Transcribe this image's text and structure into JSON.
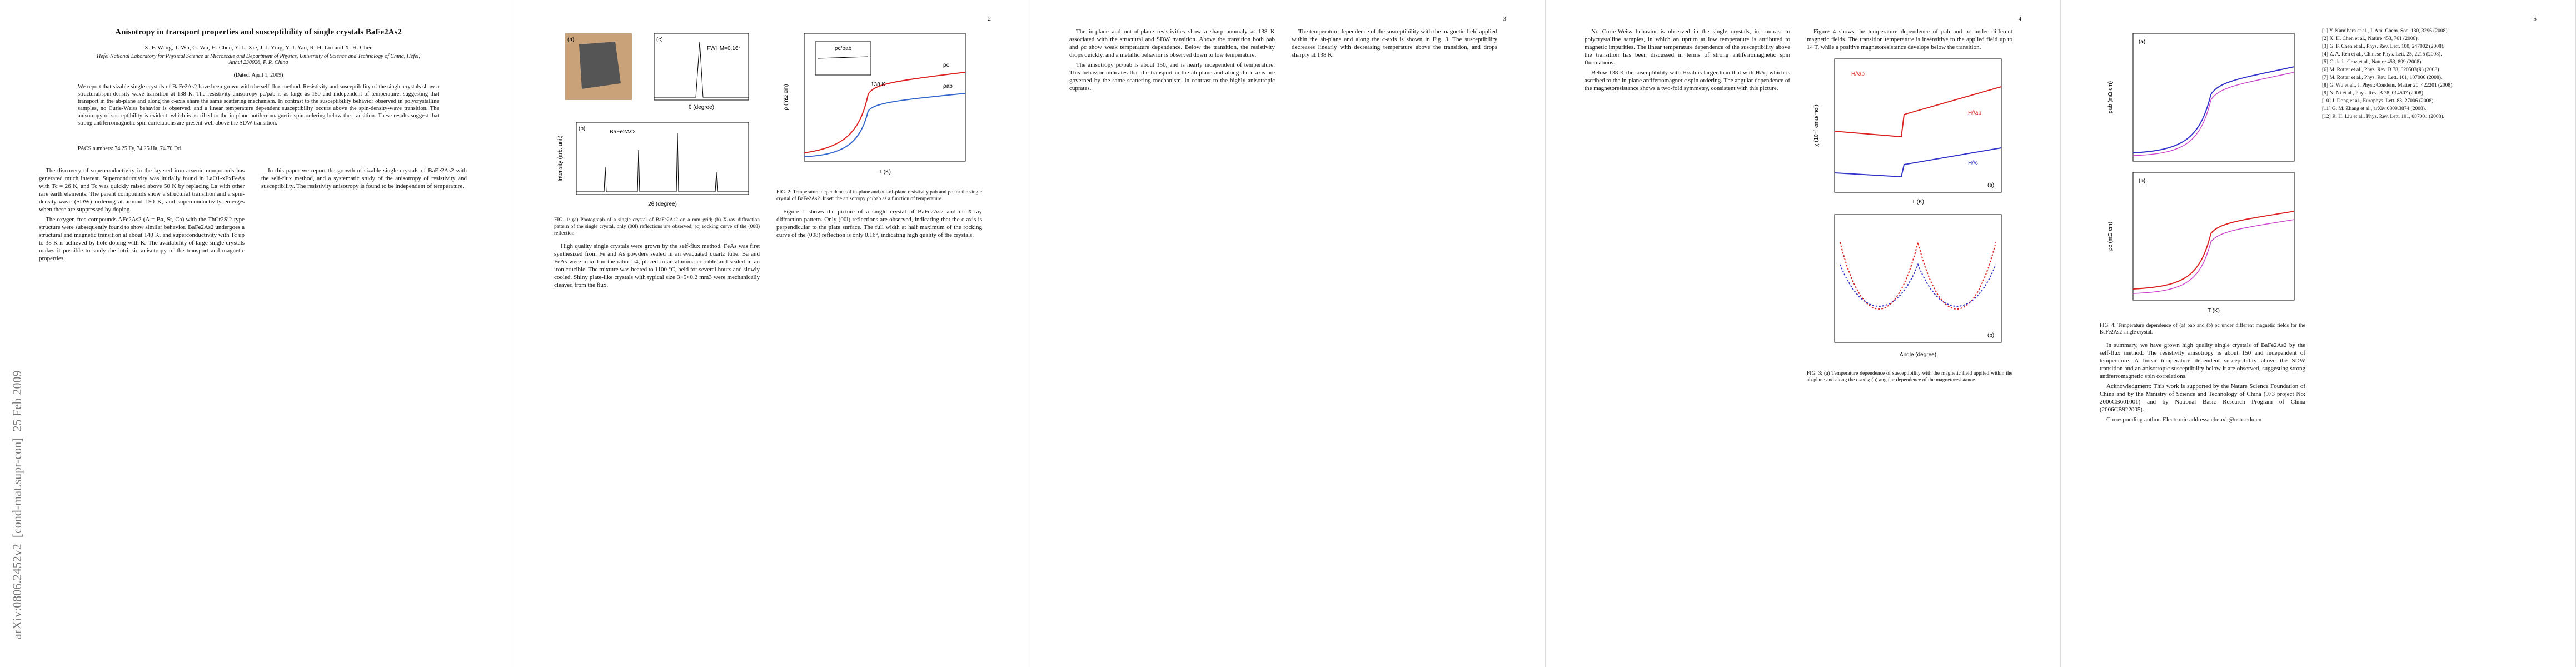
{
  "stamp": "arXiv:0806.2452v2  [cond-mat.supr-con]  25 Feb 2009",
  "page_numbers": [
    "2",
    "3",
    "4",
    "5"
  ],
  "header": {
    "title": "Anisotropy in transport properties and susceptibility of single crystals BaFe2As2",
    "authors": "X. F. Wang, T. Wu, G. Wu, H. Chen, Y. L. Xie, J. J. Ying, Y. J. Yan, R. H. Liu and X. H. Chen",
    "affiliation": "Hefei National Laboratory for Physical Science at Microscale and Department of Physics, University of Science and Technology of China, Hefei, Anhui 230026, P. R. China",
    "date": "(Dated: April 1, 2009)",
    "abstract": "We report that sizable single crystals of BaFe2As2 have been grown with the self-flux method. Resistivity and susceptibility of the single crystals show a structural/spin-density-wave transition at 138 K. The resistivity anisotropy ρc/ρab is as large as 150 and independent of temperature, suggesting that transport in the ab-plane and along the c-axis share the same scattering mechanism. In contrast to the susceptibility behavior observed in polycrystalline samples, no Curie-Weiss behavior is observed, and a linear temperature dependent susceptibility occurs above the spin-density-wave transition. The anisotropy of susceptibility is evident, which is ascribed to the in-plane antiferromagnetic spin ordering below the transition. These results suggest that strong antiferromagnetic spin correlations are present well above the SDW transition.",
    "pacs": "PACS numbers: 74.25.Fy, 74.25.Ha, 74.70.Dd"
  },
  "body": [
    [
      "The discovery of superconductivity in the layered iron-arsenic compounds has generated much interest. Superconductivity was initially found in LaO1-xFxFeAs with Tc = 26 K, and Tc was quickly raised above 50 K by replacing La with other rare earth elements. The parent compounds show a structural transition and a spin-density-wave (SDW) ordering at around 150 K, and superconductivity emerges when these are suppressed by doping.",
      "The oxygen-free compounds AFe2As2 (A = Ba, Sr, Ca) with the ThCr2Si2-type structure were subsequently found to show similar behavior. BaFe2As2 undergoes a structural and magnetic transition at about 140 K, and superconductivity with Tc up to 38 K is achieved by hole doping with K. The availability of large single crystals makes it possible to study the intrinsic anisotropy of the transport and magnetic properties.",
      "In this paper we report the growth of sizable single crystals of BaFe2As2 with the self-flux method, and a systematic study of the anisotropy of resistivity and susceptibility. The resistivity anisotropy is found to be independent of temperature."
    ],
    [
      "High quality single crystals were grown by the self-flux method. FeAs was first synthesized from Fe and As powders sealed in an evacuated quartz tube. Ba and FeAs were mixed in the ratio 1:4, placed in an alumina crucible and sealed in an iron crucible. The mixture was heated to 1100 °C, held for several hours and slowly cooled. Shiny plate-like crystals with typical size 3×5×0.2 mm3 were mechanically cleaved from the flux.",
      "Figure 1 shows the picture of a single crystal of BaFe2As2 and its X-ray diffraction pattern. Only (00l) reflections are observed, indicating that the c-axis is perpendicular to the plate surface. The full width at half maximum of the rocking curve of the (008) reflection is only 0.16°, indicating high quality of the crystals."
    ],
    [
      "The in-plane and out-of-plane resistivities show a sharp anomaly at 138 K associated with the structural and SDW transition. Above the transition both ρab and ρc show weak temperature dependence. Below the transition, the resistivity drops quickly, and a metallic behavior is observed down to low temperature.",
      "The anisotropy ρc/ρab is about 150, and is nearly independent of temperature. This behavior indicates that the transport in the ab-plane and along the c-axis are governed by the same scattering mechanism, in contrast to the highly anisotropic cuprates.",
      "The temperature dependence of the susceptibility with the magnetic field applied within the ab-plane and along the c-axis is shown in Fig. 3. The susceptibility decreases linearly with decreasing temperature above the transition, and drops sharply at 138 K."
    ],
    [
      "No Curie-Weiss behavior is observed in the single crystals, in contrast to polycrystalline samples, in which an upturn at low temperature is attributed to magnetic impurities. The linear temperature dependence of the susceptibility above the transition has been discussed in terms of strong antiferromagnetic spin fluctuations.",
      "Below 138 K the susceptibility with H//ab is larger than that with H//c, which is ascribed to the in-plane antiferromagnetic spin ordering. The angular dependence of the magnetoresistance shows a two-fold symmetry, consistent with this picture.",
      "Figure 4 shows the temperature dependence of ρab and ρc under different magnetic fields. The transition temperature is insensitive to the applied field up to 14 T, while a positive magnetoresistance develops below the transition."
    ],
    [
      "In summary, we have grown high quality single crystals of BaFe2As2 by the self-flux method. The resistivity anisotropy is about 150 and independent of temperature. A linear temperature dependent susceptibility above the SDW transition and an anisotropic susceptibility below it are observed, suggesting strong antiferromagnetic spin correlations.",
      "Acknowledgment: This work is supported by the Nature Science Foundation of China and by the Ministry of Science and Technology of China (973 project No: 2006CB601001) and by National Basic Research Program of China (2006CB922005).",
      "Corresponding author. Electronic address: chenxh@ustc.edu.cn"
    ]
  ],
  "references": [
    "[1] Y. Kamihara et al., J. Am. Chem. Soc. 130, 3296 (2008).",
    "[2] X. H. Chen et al., Nature 453, 761 (2008).",
    "[3] G. F. Chen et al., Phys. Rev. Lett. 100, 247002 (2008).",
    "[4] Z. A. Ren et al., Chinese Phys. Lett. 25, 2215 (2008).",
    "[5] C. de la Cruz et al., Nature 453, 899 (2008).",
    "[6] M. Rotter et al., Phys. Rev. B 78, 020503(R) (2008).",
    "[7] M. Rotter et al., Phys. Rev. Lett. 101, 107006 (2008).",
    "[8] G. Wu et al., J. Phys.: Condens. Matter 20, 422201 (2008).",
    "[9] N. Ni et al., Phys. Rev. B 78, 014507 (2008).",
    "[10] J. Dong et al., Europhys. Lett. 83, 27006 (2008).",
    "[11] G. M. Zhang et al., arXiv:0809.3874 (2008).",
    "[12] R. H. Liu et al., Phys. Rev. Lett. 101, 087001 (2008)."
  ],
  "figures": [
    {
      "caption": "FIG. 1: (a) Photograph of a single crystal of BaFe2As2 on a mm grid; (b) X-ray diffraction pattern of the single crystal, only (00l) reflections are observed; (c) rocking curve of the (008) reflection.",
      "labels": [
        "(a)",
        "(b)",
        "(c)",
        "FWHM=0.16°",
        "BaFe2As2",
        "2θ (degree)",
        "Intensity (arb. unit)",
        "θ (degree)"
      ]
    },
    {
      "caption": "FIG. 2: Temperature dependence of in-plane and out-of-plane resistivity ρab and ρc for the single crystal of BaFe2As2. Inset: the anisotropy ρc/ρab as a function of temperature.",
      "labels": [
        "ρab",
        "ρc",
        "138 K",
        "T (K)",
        "ρ (mΩ cm)",
        "ρc/ρab"
      ]
    },
    {
      "caption": "FIG. 3: (a) Temperature dependence of susceptibility with the magnetic field applied within the ab-plane and along the c-axis; (b) angular dependence of the magnetoresistance.",
      "labels": [
        "H//ab",
        "H//c",
        "(a)",
        "(b)",
        "T (K)",
        "Angle (degree)",
        "χ (10⁻³ emu/mol)"
      ]
    },
    {
      "caption": "FIG. 4: Temperature dependence of (a) ρab and (b) ρc under different magnetic fields for the BaFe2As2 single crystal.",
      "labels": [
        "(a)",
        "(b)",
        "ρab (mΩ cm)",
        "ρc (mΩ cm)",
        "T (K)"
      ]
    }
  ]
}
